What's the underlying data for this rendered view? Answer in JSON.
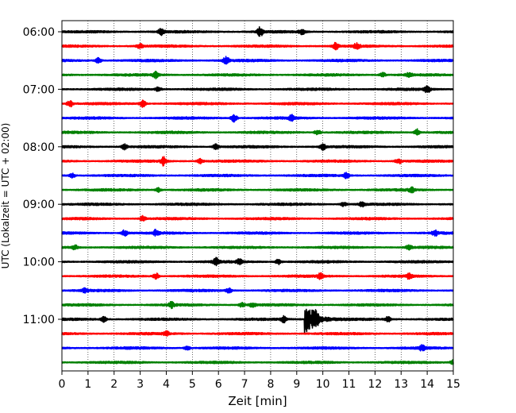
{
  "chart_data": {
    "type": "line",
    "title": "",
    "xlabel": "Zeit  [min]",
    "ylabel": "UTC (Lokalzeit = UTC + 02:00)",
    "xlim": [
      0,
      15
    ],
    "x_ticks": [
      "0",
      "1",
      "2",
      "3",
      "4",
      "5",
      "6",
      "7",
      "8",
      "9",
      "10",
      "11",
      "12",
      "13",
      "14",
      "15"
    ],
    "y_tick_labels": [
      "06:00",
      "07:00",
      "08:00",
      "09:00",
      "10:00",
      "11:00"
    ],
    "grid": "vertical dotted",
    "trace_interval_minutes": 15,
    "start_time": "06:00",
    "trace_colors": [
      "#000000",
      "#ff0000",
      "#0000ff",
      "#008000"
    ],
    "traces": [
      {
        "time": "06:00",
        "color": "black",
        "events": [
          {
            "t": 3.8,
            "amp": 0.45
          },
          {
            "t": 7.6,
            "amp": 0.6
          },
          {
            "t": 9.2,
            "amp": 0.35
          }
        ]
      },
      {
        "time": "06:15",
        "color": "red",
        "events": [
          {
            "t": 3.0,
            "amp": 0.35
          },
          {
            "t": 10.5,
            "amp": 0.45
          },
          {
            "t": 11.3,
            "amp": 0.35
          }
        ]
      },
      {
        "time": "06:30",
        "color": "blue",
        "events": [
          {
            "t": 1.4,
            "amp": 0.35
          },
          {
            "t": 6.3,
            "amp": 0.55
          }
        ]
      },
      {
        "time": "06:45",
        "color": "green",
        "events": [
          {
            "t": 3.6,
            "amp": 0.4
          },
          {
            "t": 12.3,
            "amp": 0.3
          },
          {
            "t": 13.3,
            "amp": 0.3
          }
        ]
      },
      {
        "time": "07:00",
        "color": "black",
        "events": [
          {
            "t": 3.7,
            "amp": 0.3
          },
          {
            "t": 14.0,
            "amp": 0.45
          }
        ]
      },
      {
        "time": "07:15",
        "color": "red",
        "events": [
          {
            "t": 0.3,
            "amp": 0.45
          },
          {
            "t": 3.1,
            "amp": 0.45
          }
        ]
      },
      {
        "time": "07:30",
        "color": "blue",
        "events": [
          {
            "t": 6.6,
            "amp": 0.55
          },
          {
            "t": 8.8,
            "amp": 0.35
          }
        ]
      },
      {
        "time": "07:45",
        "color": "green",
        "events": [
          {
            "t": 9.8,
            "amp": 0.35
          },
          {
            "t": 13.6,
            "amp": 0.45
          }
        ]
      },
      {
        "time": "08:00",
        "color": "black",
        "events": [
          {
            "t": 2.4,
            "amp": 0.35
          },
          {
            "t": 5.9,
            "amp": 0.35
          },
          {
            "t": 10.0,
            "amp": 0.4
          }
        ]
      },
      {
        "time": "08:15",
        "color": "red",
        "events": [
          {
            "t": 3.9,
            "amp": 0.6
          },
          {
            "t": 5.3,
            "amp": 0.3
          },
          {
            "t": 12.9,
            "amp": 0.35
          }
        ]
      },
      {
        "time": "08:30",
        "color": "blue",
        "events": [
          {
            "t": 0.4,
            "amp": 0.3
          },
          {
            "t": 10.9,
            "amp": 0.35
          }
        ]
      },
      {
        "time": "08:45",
        "color": "green",
        "events": [
          {
            "t": 3.7,
            "amp": 0.3
          },
          {
            "t": 13.4,
            "amp": 0.3
          }
        ]
      },
      {
        "time": "09:00",
        "color": "black",
        "events": [
          {
            "t": 10.8,
            "amp": 0.3
          },
          {
            "t": 11.5,
            "amp": 0.3
          }
        ]
      },
      {
        "time": "09:15",
        "color": "red",
        "events": [
          {
            "t": 3.1,
            "amp": 0.35
          }
        ]
      },
      {
        "time": "09:30",
        "color": "blue",
        "events": [
          {
            "t": 2.4,
            "amp": 0.4
          },
          {
            "t": 3.6,
            "amp": 0.4
          },
          {
            "t": 14.3,
            "amp": 0.35
          }
        ]
      },
      {
        "time": "09:45",
        "color": "green",
        "events": [
          {
            "t": 0.5,
            "amp": 0.3
          },
          {
            "t": 13.3,
            "amp": 0.3
          }
        ]
      },
      {
        "time": "10:00",
        "color": "black",
        "events": [
          {
            "t": 5.9,
            "amp": 0.45
          },
          {
            "t": 6.8,
            "amp": 0.3
          },
          {
            "t": 8.3,
            "amp": 0.35
          }
        ]
      },
      {
        "time": "10:15",
        "color": "red",
        "events": [
          {
            "t": 3.6,
            "amp": 0.4
          },
          {
            "t": 9.9,
            "amp": 0.35
          },
          {
            "t": 13.3,
            "amp": 0.3
          }
        ]
      },
      {
        "time": "10:30",
        "color": "blue",
        "events": [
          {
            "t": 0.9,
            "amp": 0.3
          },
          {
            "t": 6.4,
            "amp": 0.3
          }
        ]
      },
      {
        "time": "10:45",
        "color": "green",
        "events": [
          {
            "t": 4.2,
            "amp": 0.35
          },
          {
            "t": 6.9,
            "amp": 0.3
          },
          {
            "t": 7.3,
            "amp": 0.3
          }
        ]
      },
      {
        "time": "11:00",
        "color": "black",
        "events": [
          {
            "t": 1.6,
            "amp": 0.4
          },
          {
            "t": 8.5,
            "amp": 0.4
          },
          {
            "t": 9.35,
            "amp": 1.9
          },
          {
            "t": 9.7,
            "amp": 0.9
          },
          {
            "t": 12.5,
            "amp": 0.35
          }
        ]
      },
      {
        "time": "11:15",
        "color": "red",
        "events": [
          {
            "t": 4.0,
            "amp": 0.3
          }
        ]
      },
      {
        "time": "11:30",
        "color": "blue",
        "events": [
          {
            "t": 4.8,
            "amp": 0.3
          },
          {
            "t": 13.8,
            "amp": 0.35
          }
        ]
      },
      {
        "time": "11:45",
        "color": "green",
        "events": [
          {
            "t": 15.0,
            "amp": 0.4
          }
        ]
      }
    ]
  }
}
